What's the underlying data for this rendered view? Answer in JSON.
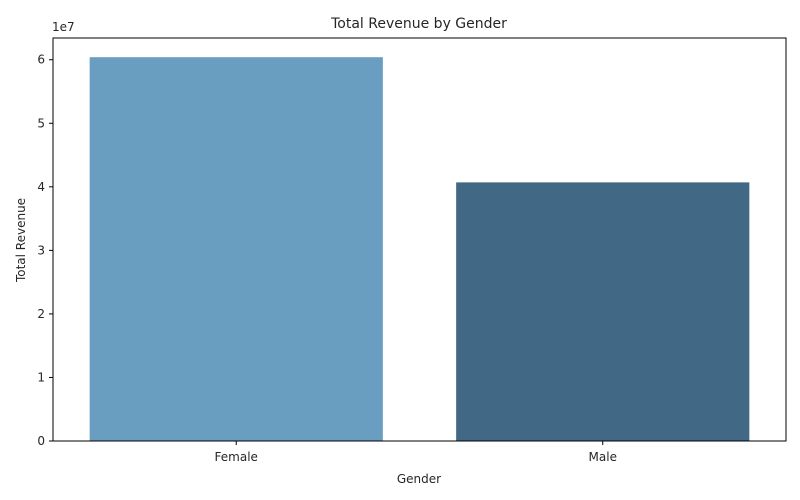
{
  "chart_data": {
    "type": "bar",
    "title": "Total Revenue by Gender",
    "xlabel": "Gender",
    "ylabel": "Total Revenue",
    "categories": [
      "Female",
      "Male"
    ],
    "values": [
      60400000,
      40700000
    ],
    "colors": [
      "#6a9ec0",
      "#416884"
    ],
    "ylim": [
      0,
      63420000
    ],
    "y_ticks": [
      0,
      10000000,
      20000000,
      30000000,
      40000000,
      50000000,
      60000000
    ],
    "y_tick_labels": [
      "0",
      "1",
      "2",
      "3",
      "4",
      "5",
      "6"
    ],
    "y_offset_label": "1e7",
    "grid": false,
    "legend": "none"
  }
}
